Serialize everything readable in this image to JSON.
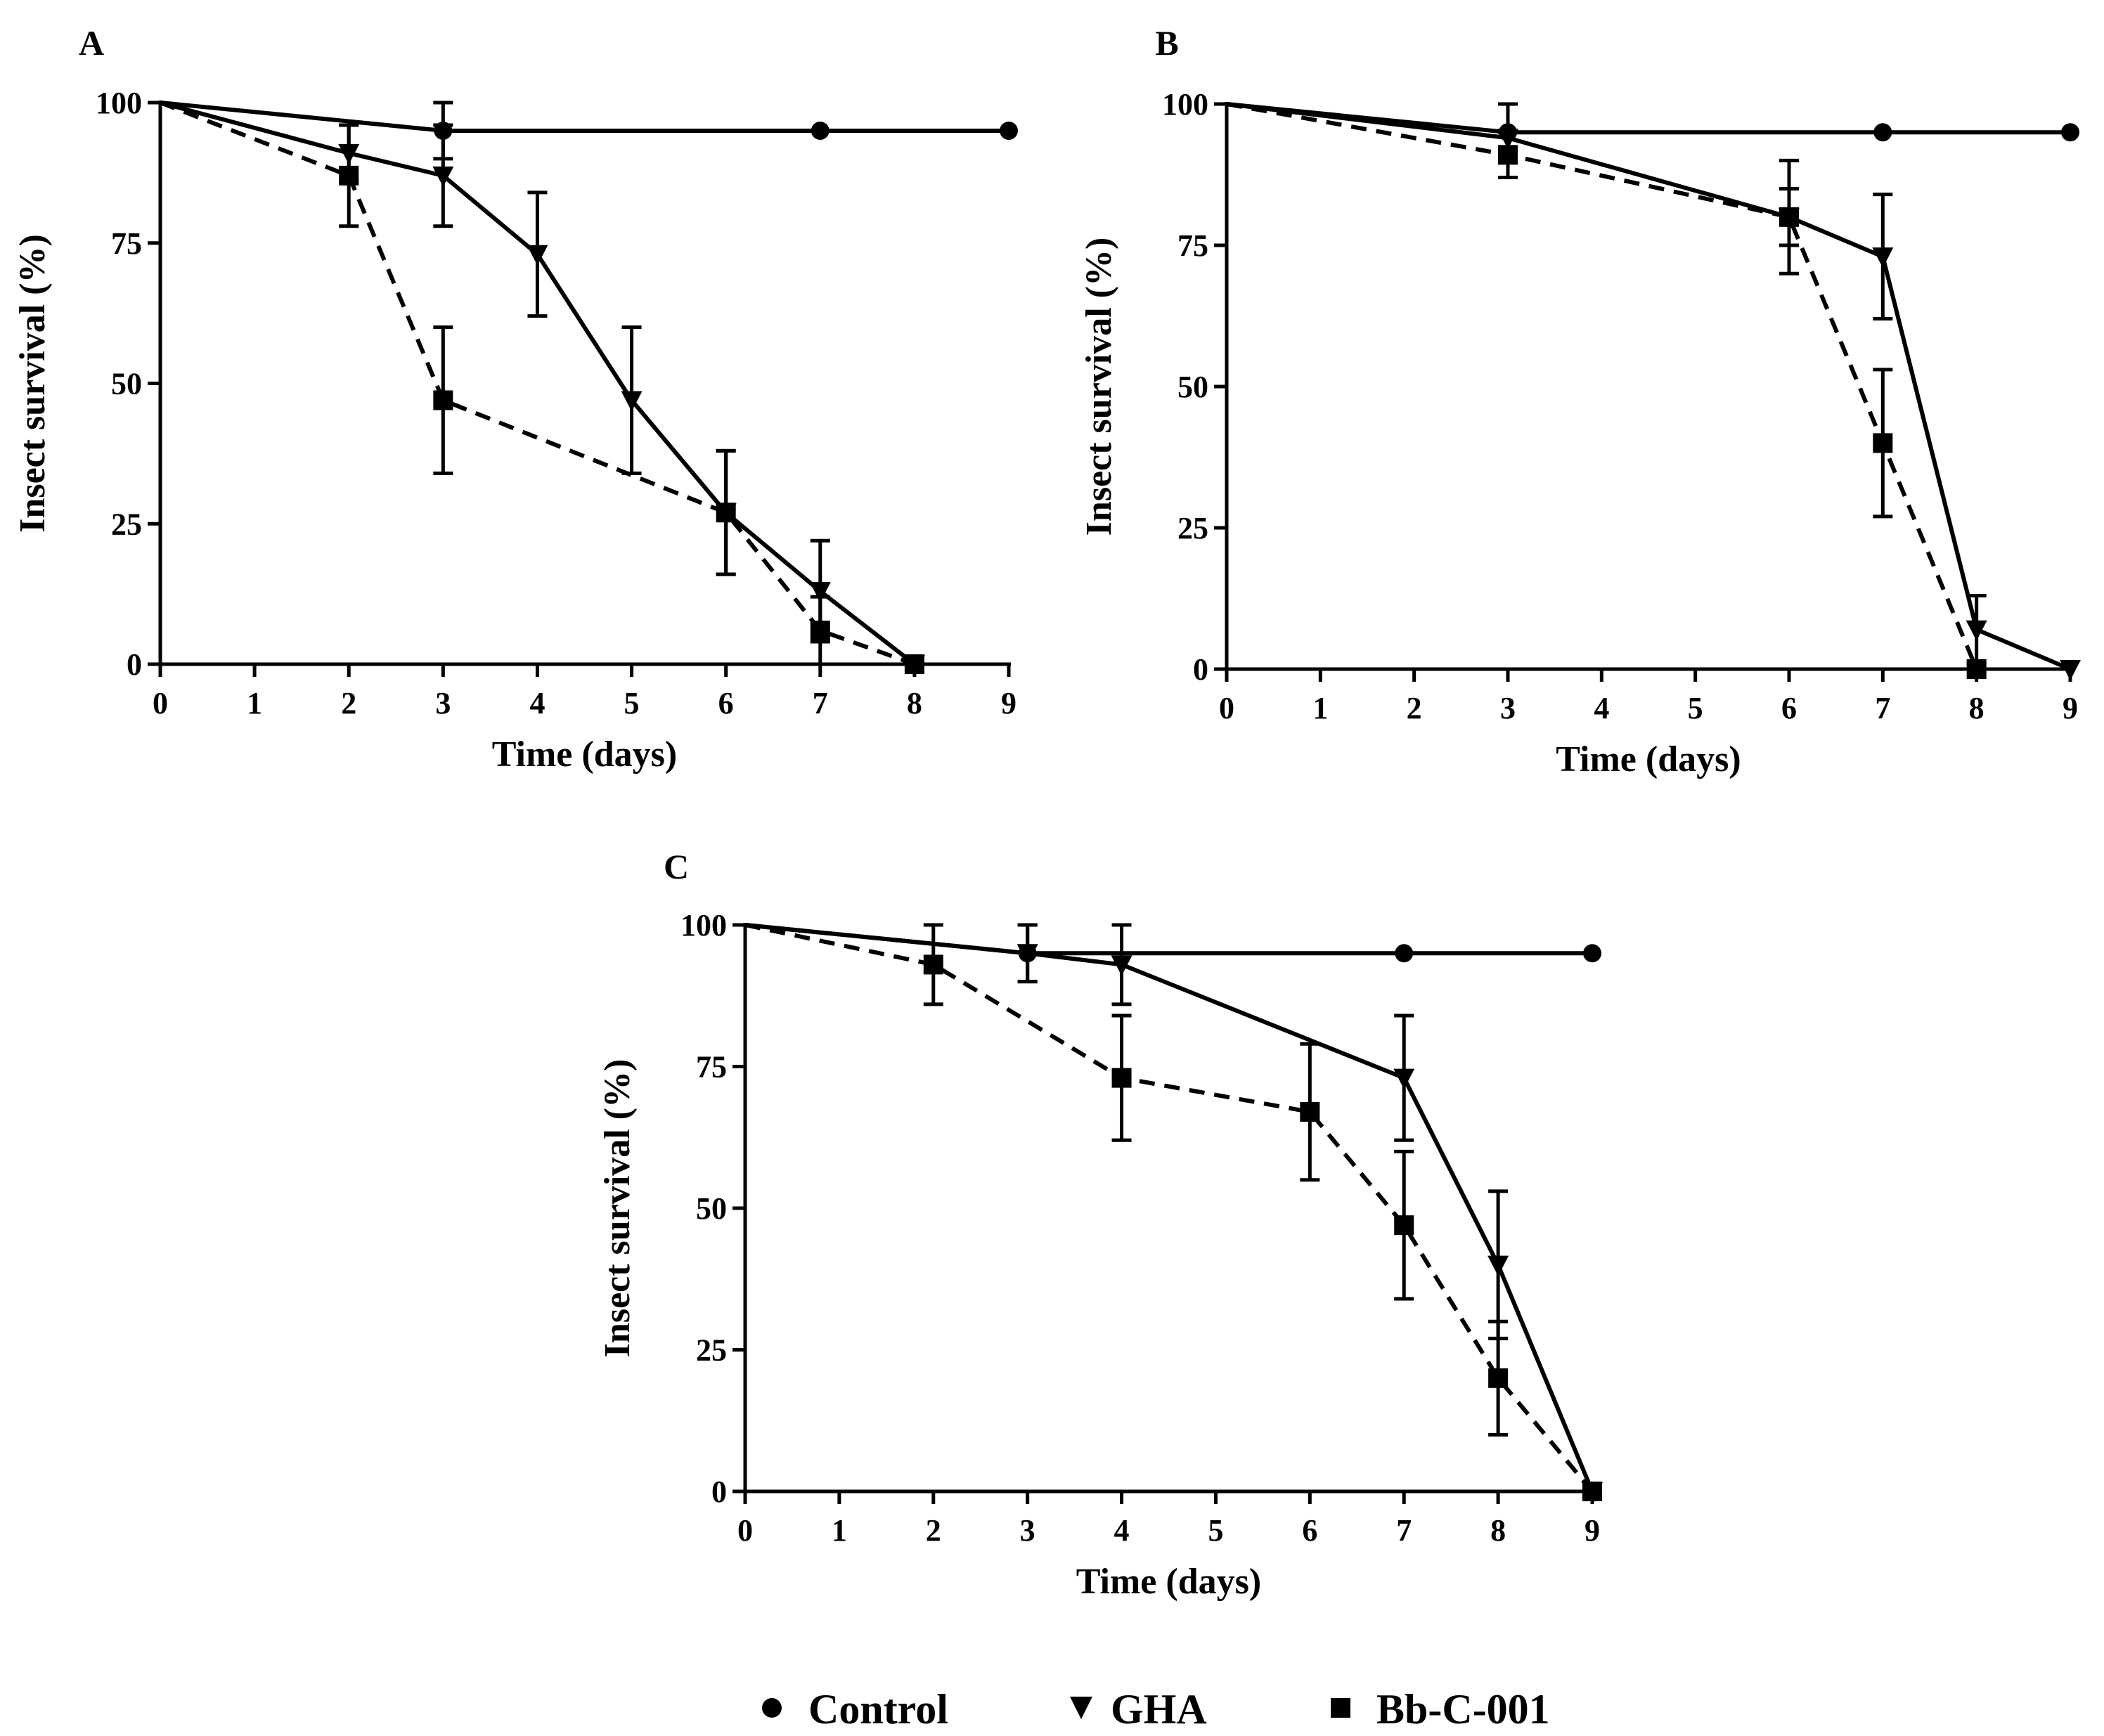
{
  "legend": {
    "control": "Control",
    "gha": "GHA",
    "bb": "Bb-C-001"
  },
  "chart_data": [
    {
      "panel": "A",
      "type": "line",
      "xlabel": "Time (days)",
      "ylabel": "Insect survival (%)",
      "xlim": [
        0,
        9
      ],
      "ylim": [
        0,
        100
      ],
      "xticks": [
        0,
        1,
        2,
        3,
        4,
        5,
        6,
        7,
        8,
        9
      ],
      "yticks": [
        0,
        25,
        50,
        75,
        100
      ],
      "series": [
        {
          "name": "Control",
          "key": "control",
          "x": [
            0,
            3,
            7,
            9
          ],
          "y": [
            100,
            95,
            95,
            95
          ],
          "err": [
            0,
            5,
            0,
            0
          ]
        },
        {
          "name": "GHA",
          "key": "gha",
          "x": [
            0,
            2,
            3,
            4,
            5,
            6,
            7,
            8
          ],
          "y": [
            100,
            91,
            87,
            73,
            47,
            27,
            13,
            0
          ],
          "err": [
            0,
            5,
            9,
            11,
            13,
            11,
            9,
            0
          ]
        },
        {
          "name": "Bb-C-001",
          "key": "bb",
          "x": [
            0,
            2,
            3,
            6,
            7,
            8
          ],
          "y": [
            100,
            87,
            47,
            27,
            6,
            0
          ],
          "err": [
            0,
            9,
            13,
            11,
            6,
            0
          ]
        }
      ]
    },
    {
      "panel": "B",
      "type": "line",
      "xlabel": "Time (days)",
      "ylabel": "Insect survival (%)",
      "xlim": [
        0,
        9
      ],
      "ylim": [
        0,
        100
      ],
      "xticks": [
        0,
        1,
        2,
        3,
        4,
        5,
        6,
        7,
        8,
        9
      ],
      "yticks": [
        0,
        25,
        50,
        75,
        100
      ],
      "series": [
        {
          "name": "Control",
          "key": "control",
          "x": [
            0,
            3,
            7,
            9
          ],
          "y": [
            100,
            95,
            95,
            95
          ],
          "err": [
            0,
            5,
            0,
            0
          ]
        },
        {
          "name": "GHA",
          "key": "gha",
          "x": [
            0,
            3,
            6,
            7,
            8,
            9
          ],
          "y": [
            100,
            94,
            80,
            73,
            7,
            0
          ],
          "err": [
            0,
            0,
            5,
            11,
            6,
            0
          ]
        },
        {
          "name": "Bb-C-001",
          "key": "bb",
          "x": [
            0,
            3,
            6,
            7,
            8
          ],
          "y": [
            100,
            91,
            80,
            40,
            0
          ],
          "err": [
            0,
            4,
            10,
            13,
            0
          ]
        }
      ]
    },
    {
      "panel": "C",
      "type": "line",
      "xlabel": "Time (days)",
      "ylabel": "Insect survival (%)",
      "xlim": [
        0,
        9
      ],
      "ylim": [
        0,
        100
      ],
      "xticks": [
        0,
        1,
        2,
        3,
        4,
        5,
        6,
        7,
        8,
        9
      ],
      "yticks": [
        0,
        25,
        50,
        75,
        100
      ],
      "series": [
        {
          "name": "Control",
          "key": "control",
          "x": [
            0,
            3,
            7,
            9
          ],
          "y": [
            100,
            95,
            95,
            95
          ],
          "err": [
            0,
            5,
            0,
            0
          ]
        },
        {
          "name": "GHA",
          "key": "gha",
          "x": [
            0,
            3,
            4,
            7,
            8,
            9
          ],
          "y": [
            100,
            95,
            93,
            73,
            40,
            0
          ],
          "err": [
            0,
            5,
            7,
            11,
            13,
            0
          ]
        },
        {
          "name": "Bb-C-001",
          "key": "bb",
          "x": [
            0,
            2,
            4,
            6,
            7,
            8,
            9
          ],
          "y": [
            100,
            93,
            73,
            67,
            47,
            20,
            0
          ],
          "err": [
            0,
            7,
            11,
            12,
            13,
            10,
            0
          ]
        }
      ]
    }
  ]
}
